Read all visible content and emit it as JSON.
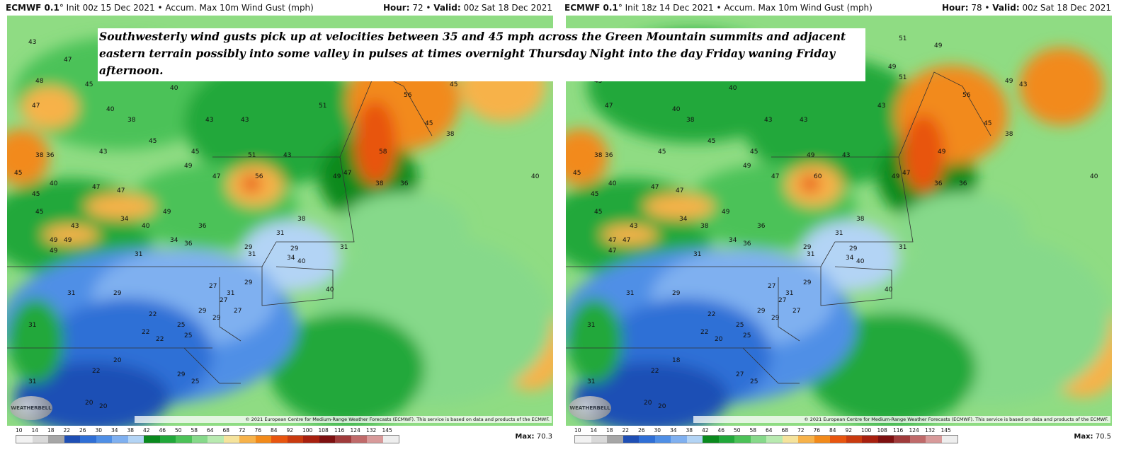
{
  "caption": "Southwesterly wind gusts pick up at velocities between 35 and 45 mph across the Green Mountain summits and adjacent eastern terrain possibly into some valley in pulses at times overnight Thursday Night into the day Friday waning Friday afternoon.",
  "copyright": "© 2021 European Centre for Medium-Range Weather Forecasts (ECMWF). This service is based on data and products of the ECMWF.",
  "logo_text": "WEATHERBELL",
  "colorbar": {
    "ticks": [
      "10",
      "14",
      "18",
      "22",
      "26",
      "30",
      "34",
      "38",
      "42",
      "46",
      "50",
      "58",
      "64",
      "68",
      "72",
      "76",
      "84",
      "92",
      "100",
      "108",
      "116",
      "124",
      "132",
      "145"
    ],
    "colors": [
      "#f2f2f2",
      "#d9d9d9",
      "#a6a6a6",
      "#1f4fb5",
      "#2f6fd6",
      "#4f8fe6",
      "#7fb0f0",
      "#b3d4f5",
      "#0a8a1e",
      "#21a83a",
      "#4cc258",
      "#86d98a",
      "#b8eab0",
      "#f5e39c",
      "#f7b24a",
      "#f28a1a",
      "#e8550f",
      "#c93a0f",
      "#a8200f",
      "#7d1010",
      "#a03b3b",
      "#c06a6a",
      "#d89a9a",
      "#eeeeee"
    ]
  },
  "panels": [
    {
      "model": "ECMWF 0.1",
      "init": "° Init 00z 15 Dec 2021",
      "product": "• Accum. Max 10m Wind Gust (mph)",
      "hour_label": "Hour:",
      "hour": " 72 • ",
      "valid_label": "Valid:",
      "valid": " 00z Sat 18 Dec 2021",
      "max_label": "Max:",
      "max": " 70.3",
      "labels": [
        "43",
        "47",
        "45",
        "40",
        "48",
        "43",
        "51",
        "43",
        "38",
        "51",
        "49",
        "47",
        "40",
        "43",
        "38",
        "43",
        "45",
        "45",
        "56",
        "45",
        "43",
        "49",
        "38",
        "51",
        "43",
        "47",
        "56",
        "36",
        "45",
        "40",
        "45",
        "38",
        "58",
        "49",
        "47",
        "40",
        "47",
        "47",
        "45",
        "38",
        "49",
        "36",
        "45",
        "34",
        "36",
        "43",
        "40",
        "49",
        "31",
        "38",
        "49",
        "49",
        "34",
        "29",
        "31",
        "36",
        "31",
        "34",
        "29",
        "40",
        "40",
        "31",
        "31",
        "29",
        "27",
        "31",
        "29",
        "27",
        "22",
        "25",
        "29",
        "27",
        "29",
        "22",
        "22",
        "25",
        "31",
        "20",
        "22",
        "31",
        "29",
        "20",
        "20",
        "25"
      ]
    },
    {
      "model": "ECMWF 0.1",
      "init": "° Init 18z 14 Dec 2021",
      "product": "• Accum. Max 10m Wind Gust (mph)",
      "hour_label": "Hour:",
      "hour": " 78 • ",
      "valid_label": "Valid:",
      "valid": " 00z Sat 18 Dec 2021",
      "max_label": "Max:",
      "max": " 70.5",
      "labels": [
        "51",
        "49",
        "45",
        "40",
        "45",
        "38",
        "51",
        "49",
        "43",
        "43",
        "49",
        "47",
        "40",
        "43",
        "38",
        "43",
        "45",
        "45",
        "56",
        "43",
        "45",
        "49",
        "38",
        "49",
        "43",
        "47",
        "60",
        "36",
        "45",
        "40",
        "45",
        "38",
        "49",
        "49",
        "47",
        "40",
        "47",
        "47",
        "45",
        "36",
        "49",
        "36",
        "45",
        "34",
        "36",
        "43",
        "38",
        "47",
        "31",
        "38",
        "47",
        "47",
        "34",
        "29",
        "31",
        "36",
        "31",
        "34",
        "29",
        "40",
        "40",
        "31",
        "31",
        "29",
        "27",
        "31",
        "29",
        "27",
        "22",
        "25",
        "29",
        "27",
        "29",
        "22",
        "20",
        "25",
        "31",
        "18",
        "22",
        "31",
        "27",
        "20",
        "20",
        "25"
      ]
    }
  ]
}
